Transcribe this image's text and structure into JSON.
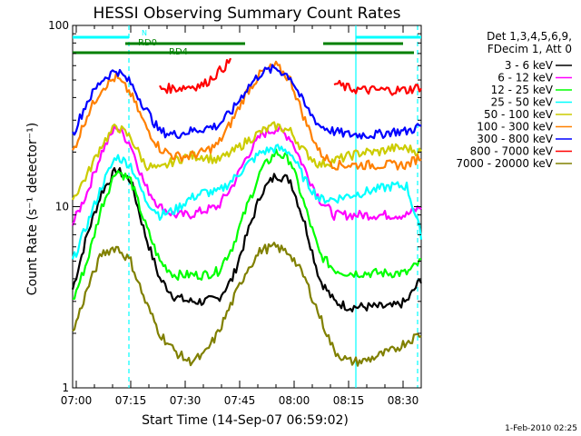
{
  "chart_data": {
    "type": "line",
    "title": "HESSI Observing Summary Count Rates",
    "xlabel": "Start Time (14-Sep-07 06:59:02)",
    "ylabel": "Count Rate (s⁻¹ detector⁻¹)",
    "yscale": "log",
    "ylim": [
      1,
      100
    ],
    "xlim_minutes": [
      0,
      96
    ],
    "x_ticks": [
      "07:00",
      "07:15",
      "07:30",
      "07:45",
      "08:00",
      "08:15",
      "08:30"
    ],
    "y_ticks": [
      "1",
      "10",
      "100"
    ],
    "legend_header": [
      "Det 1,3,4,5,6,9,",
      "FDecim 1, Att 0"
    ],
    "legend_position": "right",
    "timestamp": "1-Feb-2010 02:25",
    "grid": false,
    "x": [
      0,
      4,
      8,
      12,
      16,
      20,
      24,
      28,
      32,
      36,
      40,
      44,
      48,
      52,
      56,
      60,
      64,
      68,
      72,
      76,
      80,
      84,
      88,
      92,
      96
    ],
    "series": [
      {
        "name": "3 - 6 keV",
        "color": "#000000",
        "values": [
          3.5,
          7,
          12,
          16,
          14,
          7,
          4,
          3.2,
          3,
          3,
          3.1,
          4,
          7,
          12,
          15,
          14,
          8,
          4,
          3,
          2.8,
          2.8,
          2.8,
          2.8,
          3,
          4
        ]
      },
      {
        "name": "6 - 12 keV",
        "color": "#ff00ff",
        "values": [
          8,
          12,
          20,
          28,
          22,
          13,
          10,
          9,
          9,
          9.5,
          10,
          13,
          19,
          25,
          27,
          24,
          16,
          11,
          9,
          9,
          9,
          9,
          9,
          9,
          10
        ]
      },
      {
        "name": "12 - 25 keV",
        "color": "#00ff00",
        "values": [
          3,
          5,
          10,
          16,
          14,
          8,
          5,
          4.2,
          4.2,
          4.2,
          4.4,
          6,
          10,
          16,
          20,
          18,
          10,
          5.5,
          4.5,
          4.3,
          4.3,
          4.3,
          4.3,
          4.3,
          5
        ]
      },
      {
        "name": "25 - 50 keV",
        "color": "#00ffff",
        "values": [
          5,
          8,
          13,
          19,
          17,
          11,
          9,
          9.5,
          11,
          12,
          12,
          14,
          17,
          20,
          21,
          20,
          14,
          11,
          11,
          11.5,
          12,
          12.5,
          13,
          13,
          7
        ]
      },
      {
        "name": "50 - 100 keV",
        "color": "#cccc00",
        "values": [
          11,
          15,
          22,
          28,
          24,
          17,
          16,
          18,
          19,
          19,
          18,
          20,
          23,
          26,
          28,
          26,
          20,
          17,
          18,
          19,
          20,
          20,
          21,
          21,
          20
        ]
      },
      {
        "name": "100 - 300 keV",
        "color": "#ff8000",
        "values": [
          20,
          32,
          45,
          52,
          42,
          28,
          21,
          19,
          19,
          20,
          22,
          30,
          43,
          55,
          60,
          50,
          30,
          20,
          17,
          17,
          17,
          17,
          17,
          17,
          19
        ]
      },
      {
        "name": "300 - 800 keV",
        "color": "#0000ff",
        "values": [
          25,
          38,
          50,
          57,
          48,
          35,
          26,
          25,
          26,
          27,
          28,
          34,
          45,
          55,
          58,
          52,
          36,
          28,
          26,
          25,
          25,
          25,
          26,
          26,
          28
        ]
      },
      {
        "name": "800 - 7000 keV",
        "color": "#ff0000",
        "values": [
          null,
          null,
          null,
          null,
          null,
          null,
          45,
          45,
          46,
          47,
          55,
          65,
          null,
          null,
          null,
          null,
          null,
          null,
          48,
          45,
          44,
          44,
          44,
          44,
          46
        ]
      },
      {
        "name": "7000 - 20000 keV",
        "color": "#808000",
        "values": [
          2,
          3.5,
          5.5,
          6,
          5,
          3,
          2,
          1.6,
          1.4,
          1.5,
          2,
          3,
          4.5,
          5.8,
          6,
          5.5,
          4,
          2.5,
          1.6,
          1.4,
          1.4,
          1.5,
          1.6,
          1.8,
          2
        ]
      }
    ],
    "annotations": [
      {
        "text": "N",
        "color": "#00ffff"
      },
      {
        "text": "RD0",
        "color": "#008000"
      },
      {
        "text": "RD4",
        "color": "#008000"
      }
    ],
    "state_bars": [
      {
        "name": "night",
        "color": "#00ffff",
        "ranges": [
          [
            0,
            15.5
          ],
          [
            78,
            96
          ]
        ]
      },
      {
        "name": "RD0",
        "color": "#008000",
        "ranges": [
          [
            14.5,
            47.5
          ],
          [
            69,
            91
          ]
        ]
      },
      {
        "name": "RD4",
        "color": "#008000",
        "ranges": [
          [
            0,
            94
          ]
        ]
      }
    ],
    "vertical_markers": [
      {
        "x": 15.5,
        "color": "#00ffff",
        "style": "dashed"
      },
      {
        "x": 78,
        "color": "#00ffff",
        "style": "solid"
      },
      {
        "x": 95,
        "color": "#00ffff",
        "style": "dashed"
      }
    ]
  }
}
